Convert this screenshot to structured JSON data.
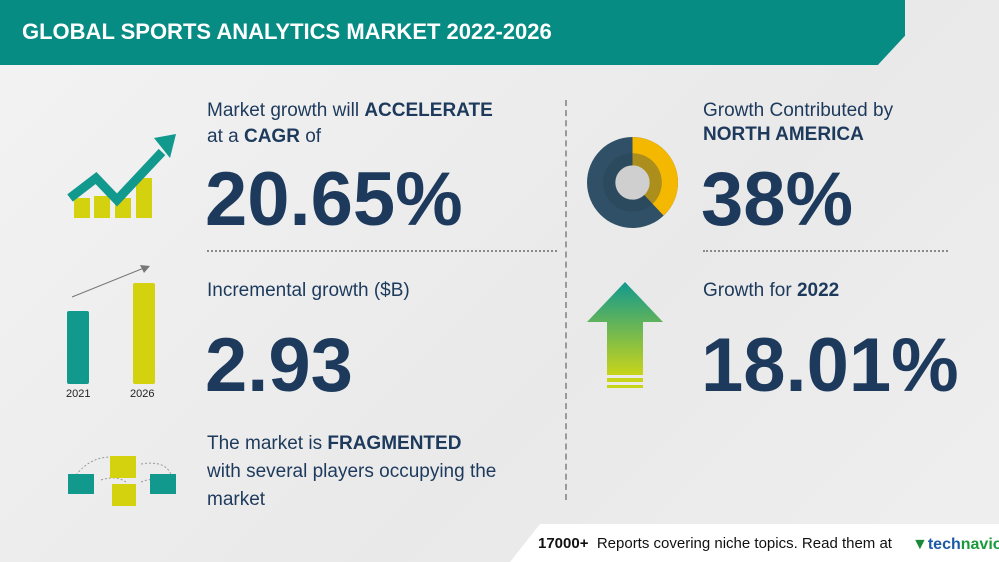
{
  "header": {
    "title": "GLOBAL SPORTS ANALYTICS MARKET 2022-2026"
  },
  "cagr": {
    "line1_prefix": "Market growth will ",
    "line1_bold": "ACCELERATE",
    "line2_prefix": "at a ",
    "line2_bold": "CAGR",
    "line2_suffix": " of",
    "value": "20.65%"
  },
  "incremental": {
    "label": "Incremental growth ($B)",
    "value": "2.93",
    "bars": {
      "years": [
        "2021",
        "2026"
      ]
    }
  },
  "market": {
    "line1_prefix": "The market is ",
    "line1_bold": "FRAGMENTED",
    "line2": "with several players occupying the",
    "line3": "market"
  },
  "region": {
    "line1": "Growth Contributed by",
    "line2": "NORTH AMERICA",
    "value": "38%",
    "share_percent": 38
  },
  "growth_year": {
    "label": "Growth for ",
    "year": "2022",
    "value": "18.01%"
  },
  "footer": {
    "count": "17000+",
    "text": "Reports covering niche topics. Read them at",
    "brand_tech": "tech",
    "brand_navio": "navio"
  },
  "colors": {
    "teal": "#078c84",
    "lime": "#d4d10f",
    "navy": "#1d3a5c",
    "slate": "#2f5066",
    "amber": "#f5b800"
  }
}
